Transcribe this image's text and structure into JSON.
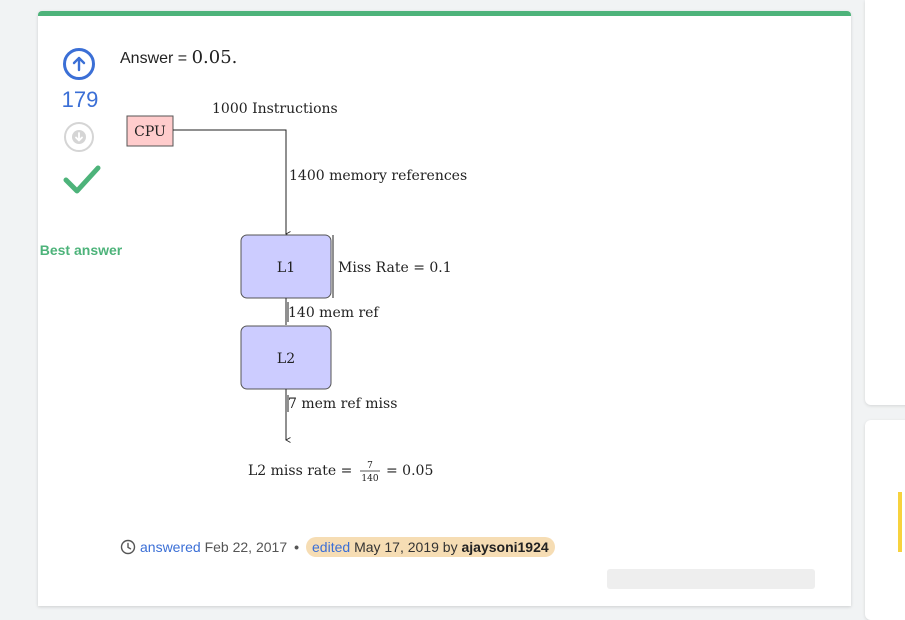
{
  "votes": {
    "count": "179",
    "best_label": "Best answer"
  },
  "answer": {
    "prefix": "Answer = ",
    "value": "0.05."
  },
  "diagram": {
    "cpu_label": "CPU",
    "instructions_label": "1000 Instructions",
    "mem_refs_label": "1400 memory references",
    "l1_label": "L1",
    "l1_miss_rate": "Miss Rate = 0.1",
    "l1_to_l2_label": "140 mem ref",
    "l2_label": "L2",
    "l2_miss_label": "7 mem ref miss",
    "l2_rate_prefix": "L2 miss rate =",
    "frac_num": "7",
    "frac_den": "140",
    "l2_rate_suffix": "= 0.05"
  },
  "meta": {
    "answered_label": "answered",
    "answered_date": "Feb 22, 2017",
    "edited_label": "edited",
    "edited_date": "May 17, 2019",
    "by_label": "by",
    "editor": "ajaysoni1924"
  },
  "colors": {
    "accent_green": "#4db37a",
    "vote_blue": "#3b6fd6",
    "cpu_fill": "#ffcccc",
    "cache_fill": "#ccccff",
    "edited_bg": "#f6ddb4"
  }
}
